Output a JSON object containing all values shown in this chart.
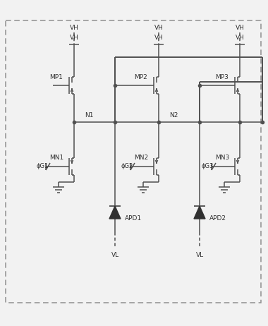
{
  "bg_color": "#f2f2f2",
  "line_color": "#505050",
  "text_color": "#303030",
  "fig_width": 3.8,
  "fig_height": 4.62,
  "dpi": 100,
  "cells": [
    {
      "mp_label": "MP1",
      "mn_label": "MN1",
      "phi_label": "ϕG1"
    },
    {
      "mp_label": "MP2",
      "mn_label": "MN2",
      "phi_label": "ϕG2"
    },
    {
      "mp_label": "MP3",
      "mn_label": "MN3",
      "phi_label": "ϕG3"
    }
  ],
  "apd_labels": [
    "APD1",
    "APD2"
  ],
  "node_labels": [
    "N1",
    "N2"
  ],
  "vh_label": "VH",
  "vl_label": "VL"
}
